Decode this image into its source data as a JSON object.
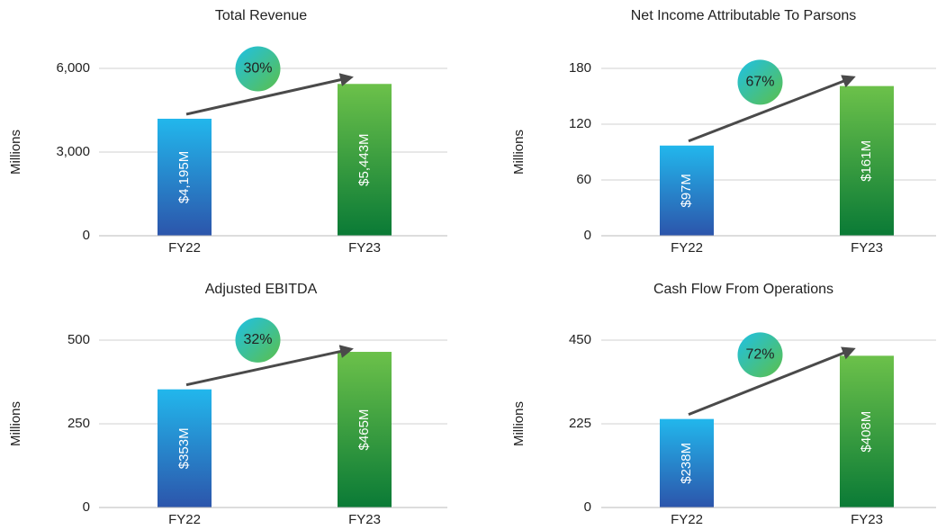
{
  "chart_data": [
    {
      "type": "bar",
      "title": "Total Revenue",
      "y_label": "Millions",
      "categories": [
        "FY22",
        "FY23"
      ],
      "values": [
        4195,
        5443
      ],
      "value_labels": [
        "$4,195M",
        "$5,443M"
      ],
      "annotation": "30%",
      "ylim": [
        0,
        6000
      ],
      "yticks": [
        0,
        {
          "value": 3000,
          "label": "3,000"
        },
        {
          "value": 6000,
          "label": "6,000"
        }
      ],
      "grid": true,
      "colors": [
        [
          "#22b7ec",
          "#2c55ab"
        ],
        [
          "#6cc14a",
          "#0a7a36"
        ]
      ]
    },
    {
      "type": "bar",
      "title": "Net Income Attributable To Parsons",
      "y_label": "Millions",
      "categories": [
        "FY22",
        "FY23"
      ],
      "values": [
        97,
        161
      ],
      "value_labels": [
        "$97M",
        "$161M"
      ],
      "annotation": "67%",
      "ylim": [
        0,
        180
      ],
      "yticks": [
        0,
        60,
        120,
        180
      ],
      "grid": true,
      "colors": [
        [
          "#22b7ec",
          "#2c55ab"
        ],
        [
          "#6cc14a",
          "#0a7a36"
        ]
      ]
    },
    {
      "type": "bar",
      "title": "Adjusted EBITDA",
      "y_label": "Millions",
      "categories": [
        "FY22",
        "FY23"
      ],
      "values": [
        353,
        465
      ],
      "value_labels": [
        "$353M",
        "$465M"
      ],
      "annotation": "32%",
      "ylim": [
        0,
        500
      ],
      "yticks": [
        0,
        250,
        500
      ],
      "grid": true,
      "colors": [
        [
          "#22b7ec",
          "#2c55ab"
        ],
        [
          "#6cc14a",
          "#0a7a36"
        ]
      ]
    },
    {
      "type": "bar",
      "title": "Cash Flow From Operations",
      "y_label": "Millions",
      "categories": [
        "FY22",
        "FY23"
      ],
      "values": [
        238,
        408
      ],
      "value_labels": [
        "$238M",
        "$408M"
      ],
      "annotation": "72%",
      "ylim": [
        0,
        450
      ],
      "yticks": [
        0,
        225,
        450
      ],
      "grid": true,
      "colors": [
        [
          "#22b7ec",
          "#2c55ab"
        ],
        [
          "#6cc14a",
          "#0a7a36"
        ]
      ]
    }
  ]
}
